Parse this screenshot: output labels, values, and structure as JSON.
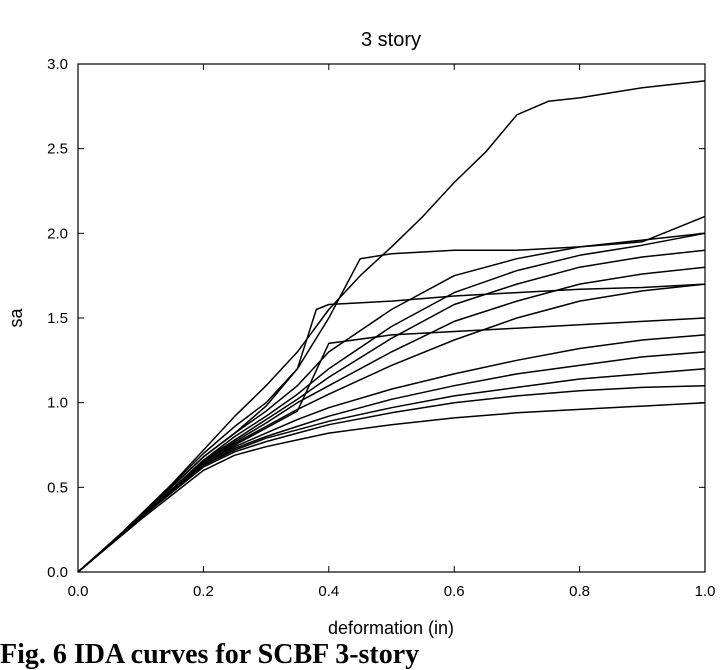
{
  "chart_data": {
    "type": "line",
    "title": "3 story",
    "xlabel": "deformation (in)",
    "ylabel": "sa",
    "xlim": [
      0,
      1
    ],
    "ylim": [
      0,
      3
    ],
    "xticks": [
      "0.0",
      "0.2",
      "0.4",
      "0.6",
      "0.8",
      "1.0"
    ],
    "yticks": [
      "0.0",
      "0.5",
      "1.0",
      "1.5",
      "2.0",
      "2.5",
      "3.0"
    ],
    "grid": false,
    "legend": "none",
    "line_color": "#000000",
    "series": [
      {
        "x": [
          0,
          0.05,
          0.1,
          0.15,
          0.2,
          0.25,
          0.3,
          0.35,
          0.4,
          0.45,
          0.5,
          0.55,
          0.6,
          0.65,
          0.7,
          0.75,
          0.8,
          0.85,
          0.9,
          0.95,
          1.0
        ],
        "y": [
          0,
          0.16,
          0.34,
          0.52,
          0.72,
          0.92,
          1.1,
          1.3,
          1.55,
          1.75,
          1.92,
          2.1,
          2.3,
          2.48,
          2.7,
          2.78,
          2.8,
          2.83,
          2.86,
          2.88,
          2.9
        ]
      },
      {
        "x": [
          0,
          0.1,
          0.2,
          0.25,
          0.3,
          0.35,
          0.4,
          0.45,
          0.5,
          0.6,
          0.7,
          0.8,
          0.9,
          1.0
        ],
        "y": [
          0,
          0.33,
          0.7,
          0.86,
          1.0,
          1.2,
          1.5,
          1.85,
          1.88,
          1.9,
          1.9,
          1.92,
          1.95,
          2.1
        ]
      },
      {
        "x": [
          0,
          0.1,
          0.2,
          0.25,
          0.3,
          0.35,
          0.38,
          0.4,
          0.5,
          0.6,
          0.7,
          0.8,
          0.9,
          1.0
        ],
        "y": [
          0,
          0.33,
          0.68,
          0.82,
          0.98,
          1.2,
          1.55,
          1.58,
          1.6,
          1.63,
          1.65,
          1.67,
          1.68,
          1.7
        ]
      },
      {
        "x": [
          0,
          0.1,
          0.2,
          0.25,
          0.3,
          0.35,
          0.4,
          0.5,
          0.6,
          0.7,
          0.8,
          0.9,
          1.0
        ],
        "y": [
          0,
          0.33,
          0.68,
          0.82,
          0.95,
          1.1,
          1.3,
          1.55,
          1.75,
          1.85,
          1.92,
          1.96,
          2.0
        ]
      },
      {
        "x": [
          0,
          0.1,
          0.2,
          0.25,
          0.3,
          0.35,
          0.4,
          0.5,
          0.6,
          0.7,
          0.8,
          0.9,
          1.0
        ],
        "y": [
          0,
          0.32,
          0.66,
          0.8,
          0.92,
          1.05,
          1.2,
          1.45,
          1.65,
          1.78,
          1.87,
          1.93,
          2.0
        ]
      },
      {
        "x": [
          0,
          0.1,
          0.2,
          0.25,
          0.3,
          0.35,
          0.4,
          0.5,
          0.6,
          0.7,
          0.8,
          0.9,
          1.0
        ],
        "y": [
          0,
          0.32,
          0.66,
          0.78,
          0.9,
          1.02,
          1.15,
          1.38,
          1.58,
          1.7,
          1.8,
          1.86,
          1.9
        ]
      },
      {
        "x": [
          0,
          0.1,
          0.2,
          0.25,
          0.3,
          0.35,
          0.4,
          0.5,
          0.6,
          0.7,
          0.8,
          0.9,
          1.0
        ],
        "y": [
          0,
          0.32,
          0.65,
          0.77,
          0.88,
          1.0,
          1.1,
          1.3,
          1.48,
          1.6,
          1.7,
          1.76,
          1.8
        ]
      },
      {
        "x": [
          0,
          0.1,
          0.2,
          0.25,
          0.3,
          0.35,
          0.4,
          0.5,
          0.6,
          0.7,
          0.8,
          0.9,
          1.0
        ],
        "y": [
          0,
          0.32,
          0.65,
          0.76,
          0.86,
          0.96,
          1.05,
          1.22,
          1.37,
          1.5,
          1.6,
          1.66,
          1.7
        ]
      },
      {
        "x": [
          0,
          0.1,
          0.2,
          0.25,
          0.3,
          0.35,
          0.4,
          0.5,
          0.6,
          0.7,
          0.8,
          0.9,
          1.0
        ],
        "y": [
          0,
          0.32,
          0.64,
          0.75,
          0.85,
          0.95,
          1.35,
          1.4,
          1.42,
          1.44,
          1.46,
          1.48,
          1.5
        ]
      },
      {
        "x": [
          0,
          0.1,
          0.2,
          0.25,
          0.3,
          0.35,
          0.4,
          0.5,
          0.6,
          0.7,
          0.8,
          0.9,
          1.0
        ],
        "y": [
          0,
          0.32,
          0.64,
          0.74,
          0.82,
          0.9,
          0.97,
          1.08,
          1.17,
          1.25,
          1.32,
          1.37,
          1.4
        ]
      },
      {
        "x": [
          0,
          0.1,
          0.2,
          0.25,
          0.3,
          0.35,
          0.4,
          0.5,
          0.6,
          0.7,
          0.8,
          0.9,
          1.0
        ],
        "y": [
          0,
          0.32,
          0.63,
          0.73,
          0.8,
          0.86,
          0.92,
          1.02,
          1.1,
          1.17,
          1.22,
          1.27,
          1.3
        ]
      },
      {
        "x": [
          0,
          0.1,
          0.2,
          0.25,
          0.3,
          0.35,
          0.4,
          0.5,
          0.6,
          0.7,
          0.8,
          0.9,
          1.0
        ],
        "y": [
          0,
          0.32,
          0.63,
          0.72,
          0.79,
          0.84,
          0.89,
          0.97,
          1.04,
          1.09,
          1.14,
          1.17,
          1.2
        ]
      },
      {
        "x": [
          0,
          0.1,
          0.2,
          0.25,
          0.3,
          0.35,
          0.4,
          0.5,
          0.6,
          0.7,
          0.8,
          0.9,
          1.0
        ],
        "y": [
          0,
          0.32,
          0.62,
          0.71,
          0.77,
          0.82,
          0.87,
          0.94,
          1.0,
          1.04,
          1.07,
          1.09,
          1.1
        ]
      },
      {
        "x": [
          0,
          0.1,
          0.2,
          0.25,
          0.3,
          0.35,
          0.4,
          0.5,
          0.6,
          0.7,
          0.8,
          0.9,
          1.0
        ],
        "y": [
          0,
          0.31,
          0.6,
          0.69,
          0.74,
          0.78,
          0.82,
          0.87,
          0.91,
          0.94,
          0.96,
          0.98,
          1.0
        ]
      }
    ]
  },
  "caption": {
    "text": "Fig. 6 IDA curves for SCBF 3-story"
  }
}
